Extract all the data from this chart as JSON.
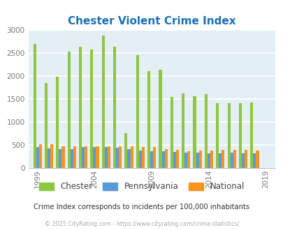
{
  "title": "Chester Violent Crime Index",
  "title_color": "#1a6fbb",
  "subtitle": "Crime Index corresponds to incidents per 100,000 inhabitants",
  "footer": "© 2025 CityRating.com - https://www.cityrating.com/crime-statistics/",
  "years": [
    1999,
    2000,
    2001,
    2002,
    2003,
    2004,
    2005,
    2006,
    2007,
    2008,
    2009,
    2010,
    2011,
    2012,
    2013,
    2014,
    2015,
    2016,
    2017,
    2018
  ],
  "chester": [
    2700,
    1850,
    1980,
    2530,
    2640,
    2570,
    2870,
    2640,
    760,
    2460,
    2100,
    2140,
    1540,
    1620,
    1560,
    1600,
    1400,
    1400,
    1400,
    1420
  ],
  "pennsylvania": [
    450,
    420,
    415,
    415,
    455,
    460,
    455,
    440,
    400,
    375,
    365,
    365,
    340,
    330,
    335,
    315,
    315,
    325,
    320,
    320
  ],
  "national": [
    510,
    510,
    475,
    475,
    475,
    465,
    470,
    475,
    470,
    460,
    450,
    405,
    390,
    365,
    370,
    375,
    385,
    395,
    390,
    380
  ],
  "chester_color": "#8dc63f",
  "pennsylvania_color": "#5b9bd5",
  "national_color": "#f7941d",
  "bg_color": "#e4eff5",
  "ylim": [
    0,
    3000
  ],
  "yticks": [
    0,
    500,
    1000,
    1500,
    2000,
    2500,
    3000
  ],
  "bar_width": 0.25,
  "grid_color": "#ffffff",
  "tick_label_color": "#777777",
  "legend_labels": [
    "Chester",
    "Pennsylvania",
    "National"
  ],
  "xtick_positions": [
    1999,
    2004,
    2009,
    2014,
    2019
  ]
}
